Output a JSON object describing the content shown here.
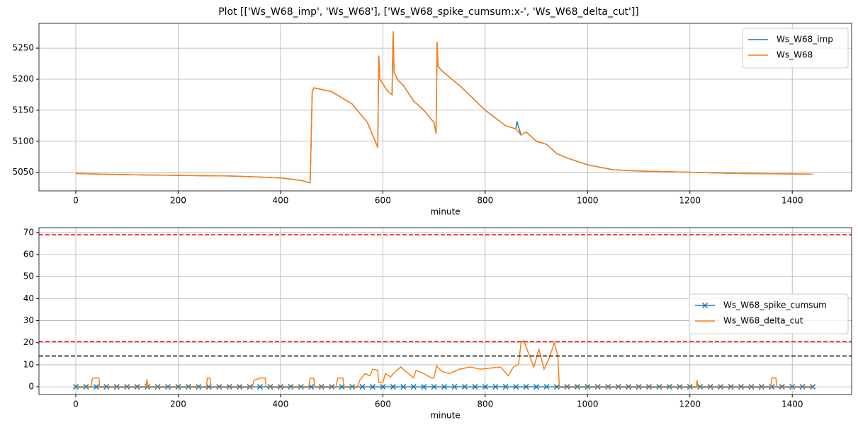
{
  "chart_data": [
    {
      "type": "line",
      "title": "Plot [['Ws_W68_imp', 'Ws_W68'], ['Ws_W68_spike_cumsum:x-', 'Ws_W68_delta_cut']]",
      "x_label": "minute",
      "x": [
        0,
        50,
        100,
        200,
        300,
        400,
        440,
        458,
        462,
        465,
        500,
        540,
        570,
        590,
        592,
        594,
        610,
        618,
        620,
        622,
        630,
        640,
        660,
        680,
        700,
        704,
        706,
        708,
        720,
        750,
        800,
        840,
        860,
        862,
        870,
        880,
        900,
        920,
        940,
        960,
        1000,
        1050,
        1100,
        1200,
        1300,
        1440
      ],
      "series": [
        {
          "name": "Ws_W68_imp",
          "color": "#1f77b4",
          "values": [
            5048,
            5047,
            5046,
            5045,
            5044,
            5041,
            5037,
            5033,
            5180,
            5186,
            5180,
            5160,
            5130,
            5090,
            5238,
            5200,
            5180,
            5175,
            5277,
            5210,
            5198,
            5190,
            5165,
            5150,
            5130,
            5112,
            5260,
            5220,
            5210,
            5190,
            5150,
            5125,
            5120,
            5132,
            5110,
            5115,
            5100,
            5095,
            5080,
            5073,
            5062,
            5054,
            5052,
            5050,
            5048,
            5047
          ]
        },
        {
          "name": "Ws_W68",
          "color": "#ff7f0e",
          "values": [
            5048,
            5047,
            5046,
            5045,
            5044,
            5041,
            5037,
            5033,
            5180,
            5186,
            5180,
            5160,
            5130,
            5090,
            5238,
            5200,
            5180,
            5175,
            5277,
            5210,
            5198,
            5190,
            5165,
            5150,
            5130,
            5112,
            5260,
            5220,
            5210,
            5190,
            5150,
            5125,
            5120,
            5118,
            5110,
            5115,
            5100,
            5095,
            5080,
            5073,
            5062,
            5054,
            5052,
            5050,
            5048,
            5047
          ]
        }
      ],
      "xlim": [
        -72,
        1516
      ],
      "xticks": [
        0,
        200,
        400,
        600,
        800,
        1000,
        1200,
        1400
      ],
      "ylim": [
        5020,
        5290
      ],
      "yticks": [
        5050,
        5100,
        5150,
        5200,
        5250
      ],
      "grid": true,
      "legend": "upper right"
    },
    {
      "type": "line",
      "x_label": "minute",
      "series": [
        {
          "name": "Ws_W68_spike_cumsum",
          "color": "#1f77b4",
          "marker": "x",
          "x": [
            0,
            20,
            40,
            60,
            80,
            100,
            120,
            140,
            160,
            180,
            200,
            220,
            240,
            260,
            280,
            300,
            320,
            340,
            360,
            380,
            400,
            420,
            440,
            460,
            480,
            500,
            520,
            540,
            560,
            580,
            600,
            620,
            640,
            660,
            680,
            700,
            720,
            740,
            760,
            780,
            800,
            820,
            840,
            860,
            880,
            900,
            920,
            940,
            960,
            980,
            1000,
            1020,
            1040,
            1060,
            1080,
            1100,
            1120,
            1140,
            1160,
            1180,
            1200,
            1220,
            1240,
            1260,
            1280,
            1300,
            1320,
            1340,
            1360,
            1380,
            1400,
            1420,
            1440
          ],
          "values": [
            0,
            0,
            0,
            0,
            0,
            0,
            0,
            0,
            0,
            0,
            0,
            0,
            0,
            0,
            0,
            0,
            0,
            0,
            0,
            0,
            0,
            0,
            0,
            0,
            0,
            0,
            0,
            0,
            0,
            0,
            0,
            0,
            0,
            0,
            0,
            0,
            0,
            0,
            0,
            0,
            0,
            0,
            0,
            0,
            0,
            0,
            0,
            0,
            0,
            0,
            0,
            0,
            0,
            0,
            0,
            0,
            0,
            0,
            0,
            0,
            0,
            0,
            0,
            0,
            0,
            0,
            0,
            0,
            0,
            0,
            0,
            0,
            0
          ]
        },
        {
          "name": "Ws_W68_delta_cut",
          "color": "#ff7f0e",
          "x": [
            0,
            30,
            32,
            35,
            45,
            47,
            137,
            139,
            141,
            255,
            257,
            262,
            264,
            345,
            348,
            355,
            360,
            370,
            372,
            455,
            458,
            465,
            467,
            508,
            512,
            522,
            524,
            550,
            555,
            565,
            575,
            580,
            590,
            592,
            600,
            605,
            615,
            625,
            635,
            645,
            660,
            665,
            680,
            695,
            700,
            705,
            715,
            730,
            750,
            770,
            790,
            810,
            830,
            845,
            855,
            865,
            870,
            875,
            885,
            895,
            905,
            915,
            925,
            935,
            942,
            945,
            1212,
            1214,
            1216,
            1358,
            1360,
            1368,
            1370,
            1440
          ],
          "values": [
            -0.3,
            -0.3,
            3.5,
            4,
            4,
            -0.3,
            -0.3,
            3.5,
            -0.3,
            -0.3,
            4,
            4,
            -0.3,
            -0.3,
            3,
            3.5,
            4,
            4,
            -0.3,
            -0.3,
            4,
            4,
            -0.3,
            -0.3,
            4,
            4,
            -0.3,
            -0.3,
            3,
            6,
            5,
            8,
            7.5,
            2,
            2,
            6,
            4.5,
            7,
            9,
            7,
            4,
            7.5,
            6,
            4,
            4,
            9.5,
            7,
            6,
            8,
            9,
            8,
            8.5,
            9,
            5,
            9,
            10,
            20,
            21,
            15,
            9,
            17,
            8,
            13,
            20,
            14,
            -0.3,
            -0.3,
            3,
            -0.3,
            -0.3,
            4,
            4,
            -0.3,
            -0.3
          ]
        }
      ],
      "hlines": [
        {
          "y": 69,
          "color": "#ff0000"
        },
        {
          "y": 20.5,
          "color": "#ff0000"
        },
        {
          "y": 14,
          "color": "#000000"
        }
      ],
      "xlim": [
        -72,
        1516
      ],
      "xticks": [
        0,
        200,
        400,
        600,
        800,
        1000,
        1200,
        1400
      ],
      "ylim": [
        -3.5,
        72.2
      ],
      "yticks": [
        0,
        10,
        20,
        30,
        40,
        50,
        60,
        70
      ],
      "grid": true,
      "legend": "center right"
    }
  ]
}
